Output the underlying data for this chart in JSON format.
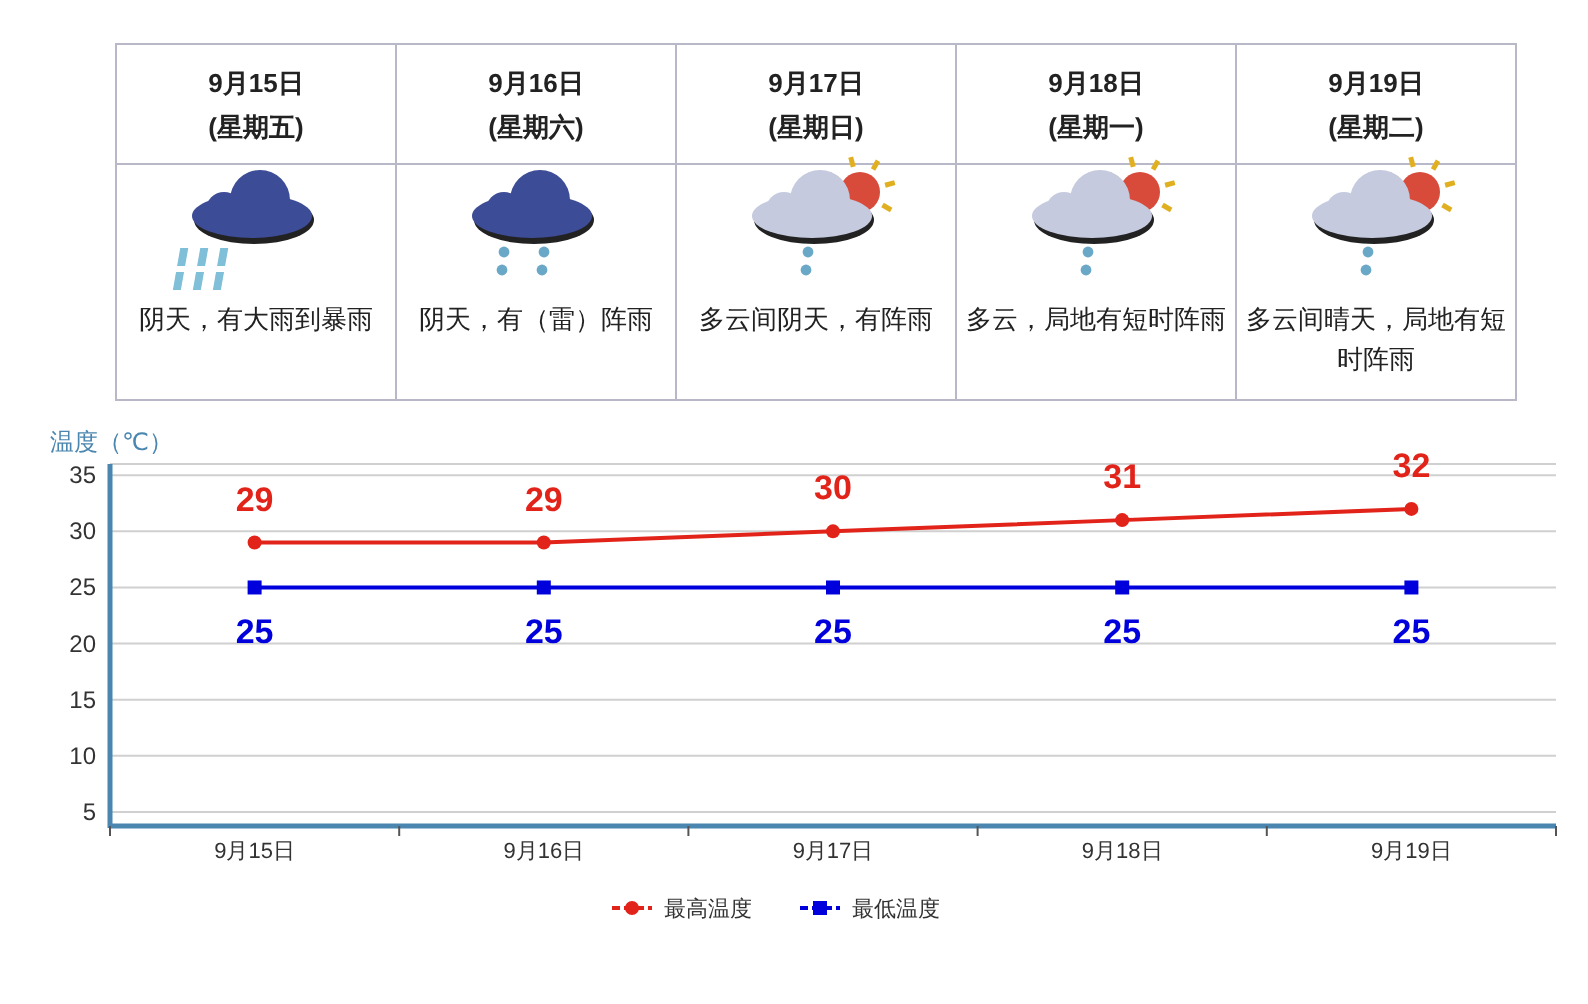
{
  "chart_data": [
    {
      "type": "other",
      "annotations": [
        "9月15日",
        "(星期五)",
        "阴天，有大雨到暴雨",
        "9月16日",
        "(星期六)",
        "阴天，有（雷）阵雨",
        "9月17日",
        "(星期日)",
        "多云间阴天，有阵雨",
        "9月18日",
        "(星期一)",
        "多云，局地有短时阵雨",
        "9月19日",
        "(星期二)",
        "多云间晴天，局地有短时阵雨"
      ]
    },
    {
      "type": "line",
      "ylabel": "温度（℃）",
      "categories": [
        "9月15日",
        "9月16日",
        "9月17日",
        "9月18日",
        "9月19日"
      ],
      "series": [
        {
          "name": "最高温度",
          "color": "#e2231a",
          "marker": "circle",
          "values": [
            29,
            29,
            30,
            31,
            32
          ]
        },
        {
          "name": "最低温度",
          "color": "#0000dd",
          "marker": "square",
          "values": [
            25,
            25,
            25,
            25,
            25
          ]
        }
      ],
      "ylim": [
        3.75,
        36
      ],
      "yticks": [
        5,
        10,
        15,
        20,
        25,
        30,
        35
      ],
      "grid": "y",
      "legend": "bottom",
      "data_labels": true
    }
  ]
}
